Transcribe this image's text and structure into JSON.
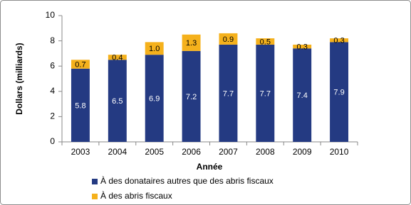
{
  "chart_data": {
    "type": "stacked_bar",
    "x_label": "Année",
    "y_label": "Dollars (milliards)",
    "categories": [
      "2003",
      "2004",
      "2005",
      "2006",
      "2007",
      "2008",
      "2009",
      "2010"
    ],
    "series": [
      {
        "name": "À des donataires autres que des abris fiscaux",
        "color": "#243a82",
        "values": [
          5.8,
          6.5,
          6.9,
          7.2,
          7.7,
          7.7,
          7.4,
          7.9
        ]
      },
      {
        "name": "À des abris fiscaux",
        "color": "#f5b11c",
        "values": [
          0.7,
          0.4,
          1.0,
          1.3,
          0.9,
          0.5,
          0.3,
          0.3
        ],
        "value_labels": [
          "0.7",
          "0.4",
          "1.0",
          "1.3",
          "0.9",
          "0.5",
          "0.3",
          "0.3"
        ]
      }
    ],
    "ylim": [
      0,
      10
    ],
    "yticks": [
      0,
      2,
      4,
      6,
      8,
      10
    ],
    "grid": false
  }
}
